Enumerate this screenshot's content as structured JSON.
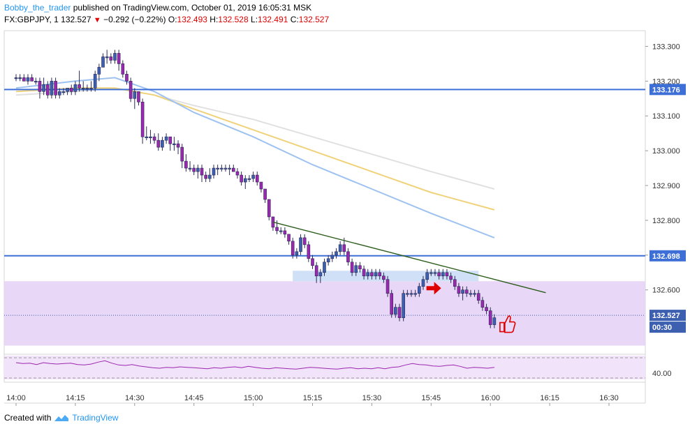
{
  "header": {
    "username": "Bobby_the_trader",
    "published_text": "published on TradingView.com, October 01, 2019 16:05:31 MSK",
    "symbol": "FX:GBPJPY, 1",
    "last": "132.527",
    "change": "−0.292 (−0.22%)",
    "o_label": "O:",
    "o_val": "132.493",
    "h_label": "H:",
    "h_val": "132.528",
    "l_label": "L:",
    "l_val": "132.491",
    "c_label": "C:",
    "c_val": "132.527"
  },
  "footer": {
    "created_with": "Created with",
    "brand": "TradingView"
  },
  "colors": {
    "candle_up": "#3d5fb0",
    "candle_down": "#9c27b0",
    "hline": "#3d6fd6",
    "zone": "#e5d3f5",
    "rsi": "#9c27b0"
  },
  "chart_data": {
    "type": "candlestick",
    "x_ticks": [
      "14:00",
      "14:15",
      "14:30",
      "14:45",
      "15:00",
      "15:15",
      "15:30",
      "15:45",
      "16:00",
      "16:15",
      "16:30"
    ],
    "y_ticks": [
      "133.300",
      "133.200",
      "133.100",
      "133.000",
      "132.900",
      "132.800",
      "132.700",
      "132.600"
    ],
    "ylim": [
      132.415,
      133.345
    ],
    "price_labels": [
      {
        "text": "133.176",
        "value": 133.176,
        "kind": "hline"
      },
      {
        "text": "132.698",
        "value": 132.698,
        "kind": "hline"
      },
      {
        "text": "132.527",
        "value": 132.527,
        "kind": "last"
      },
      {
        "text": "00:30",
        "value": 132.49,
        "kind": "timer"
      }
    ],
    "rsi_tick": "40.00",
    "horizontal_lines": [
      133.176,
      132.698
    ],
    "zone": {
      "from": 132.44,
      "to": 132.625
    },
    "trendline": {
      "from_time": "15:05",
      "from": 132.795,
      "to_time": "16:14",
      "to": 132.592
    },
    "annotations": [
      "arrow",
      "thumbs-up"
    ],
    "candles": [
      {
        "t": "14:00",
        "o": 133.21,
        "h": 133.22,
        "l": 133.2,
        "c": 133.21
      },
      {
        "t": "14:01",
        "o": 133.21,
        "h": 133.22,
        "l": 133.2,
        "c": 133.21
      },
      {
        "t": "14:02",
        "o": 133.21,
        "h": 133.22,
        "l": 133.2,
        "c": 133.2
      },
      {
        "t": "14:03",
        "o": 133.2,
        "h": 133.22,
        "l": 133.19,
        "c": 133.21
      },
      {
        "t": "14:04",
        "o": 133.21,
        "h": 133.22,
        "l": 133.2,
        "c": 133.2
      },
      {
        "t": "14:05",
        "o": 133.2,
        "h": 133.21,
        "l": 133.19,
        "c": 133.2
      },
      {
        "t": "14:06",
        "o": 133.2,
        "h": 133.21,
        "l": 133.15,
        "c": 133.17
      },
      {
        "t": "14:07",
        "o": 133.17,
        "h": 133.21,
        "l": 133.16,
        "c": 133.19
      },
      {
        "t": "14:08",
        "o": 133.19,
        "h": 133.2,
        "l": 133.15,
        "c": 133.16
      },
      {
        "t": "14:09",
        "o": 133.16,
        "h": 133.21,
        "l": 133.15,
        "c": 133.2
      },
      {
        "t": "14:10",
        "o": 133.2,
        "h": 133.21,
        "l": 133.15,
        "c": 133.16
      },
      {
        "t": "14:11",
        "o": 133.16,
        "h": 133.18,
        "l": 133.15,
        "c": 133.17
      },
      {
        "t": "14:12",
        "o": 133.17,
        "h": 133.18,
        "l": 133.16,
        "c": 133.17
      },
      {
        "t": "14:13",
        "o": 133.17,
        "h": 133.18,
        "l": 133.16,
        "c": 133.18
      },
      {
        "t": "14:14",
        "o": 133.18,
        "h": 133.19,
        "l": 133.16,
        "c": 133.17
      },
      {
        "t": "14:15",
        "o": 133.17,
        "h": 133.2,
        "l": 133.16,
        "c": 133.19
      },
      {
        "t": "14:16",
        "o": 133.19,
        "h": 133.23,
        "l": 133.17,
        "c": 133.18
      },
      {
        "t": "14:17",
        "o": 133.18,
        "h": 133.2,
        "l": 133.17,
        "c": 133.18
      },
      {
        "t": "14:18",
        "o": 133.18,
        "h": 133.19,
        "l": 133.17,
        "c": 133.18
      },
      {
        "t": "14:19",
        "o": 133.18,
        "h": 133.2,
        "l": 133.17,
        "c": 133.18
      },
      {
        "t": "14:20",
        "o": 133.18,
        "h": 133.23,
        "l": 133.17,
        "c": 133.22
      },
      {
        "t": "14:21",
        "o": 133.22,
        "h": 133.25,
        "l": 133.2,
        "c": 133.24
      },
      {
        "t": "14:22",
        "o": 133.24,
        "h": 133.28,
        "l": 133.24,
        "c": 133.27
      },
      {
        "t": "14:23",
        "o": 133.27,
        "h": 133.29,
        "l": 133.25,
        "c": 133.27
      },
      {
        "t": "14:24",
        "o": 133.27,
        "h": 133.28,
        "l": 133.25,
        "c": 133.26
      },
      {
        "t": "14:25",
        "o": 133.26,
        "h": 133.29,
        "l": 133.25,
        "c": 133.28
      },
      {
        "t": "14:26",
        "o": 133.28,
        "h": 133.29,
        "l": 133.23,
        "c": 133.25
      },
      {
        "t": "14:27",
        "o": 133.25,
        "h": 133.26,
        "l": 133.21,
        "c": 133.22
      },
      {
        "t": "14:28",
        "o": 133.22,
        "h": 133.23,
        "l": 133.19,
        "c": 133.2
      },
      {
        "t": "14:29",
        "o": 133.2,
        "h": 133.21,
        "l": 133.14,
        "c": 133.15
      },
      {
        "t": "14:30",
        "o": 133.15,
        "h": 133.18,
        "l": 133.12,
        "c": 133.17
      },
      {
        "t": "14:31",
        "o": 133.17,
        "h": 133.17,
        "l": 133.13,
        "c": 133.14
      },
      {
        "t": "14:32",
        "o": 133.14,
        "h": 133.15,
        "l": 133.02,
        "c": 133.04
      },
      {
        "t": "14:33",
        "o": 133.04,
        "h": 133.07,
        "l": 133.03,
        "c": 133.04
      },
      {
        "t": "14:34",
        "o": 133.04,
        "h": 133.06,
        "l": 133.02,
        "c": 133.04
      },
      {
        "t": "14:35",
        "o": 133.04,
        "h": 133.05,
        "l": 133.02,
        "c": 133.03
      },
      {
        "t": "14:36",
        "o": 133.03,
        "h": 133.05,
        "l": 133,
        "c": 133.01
      },
      {
        "t": "14:37",
        "o": 133.01,
        "h": 133.04,
        "l": 133,
        "c": 133.03
      },
      {
        "t": "14:38",
        "o": 133.03,
        "h": 133.05,
        "l": 133.02,
        "c": 133.04
      },
      {
        "t": "14:39",
        "o": 133.04,
        "h": 133.04,
        "l": 133,
        "c": 133.02
      },
      {
        "t": "14:40",
        "o": 133.02,
        "h": 133.04,
        "l": 133,
        "c": 133.02
      },
      {
        "t": "14:41",
        "o": 133.02,
        "h": 133.03,
        "l": 132.99,
        "c": 133.01
      },
      {
        "t": "14:42",
        "o": 133.01,
        "h": 133.02,
        "l": 132.95,
        "c": 132.97
      },
      {
        "t": "14:43",
        "o": 132.97,
        "h": 132.99,
        "l": 132.94,
        "c": 132.95
      },
      {
        "t": "14:44",
        "o": 132.95,
        "h": 132.97,
        "l": 132.94,
        "c": 132.95
      },
      {
        "t": "14:45",
        "o": 132.95,
        "h": 132.96,
        "l": 132.93,
        "c": 132.94
      },
      {
        "t": "14:46",
        "o": 132.94,
        "h": 132.96,
        "l": 132.92,
        "c": 132.95
      },
      {
        "t": "14:47",
        "o": 132.95,
        "h": 132.96,
        "l": 132.91,
        "c": 132.93
      },
      {
        "t": "14:48",
        "o": 132.93,
        "h": 132.94,
        "l": 132.91,
        "c": 132.92
      },
      {
        "t": "14:49",
        "o": 132.92,
        "h": 132.95,
        "l": 132.91,
        "c": 132.93
      },
      {
        "t": "14:50",
        "o": 132.93,
        "h": 132.96,
        "l": 132.92,
        "c": 132.95
      },
      {
        "t": "14:51",
        "o": 132.95,
        "h": 132.96,
        "l": 132.93,
        "c": 132.95
      },
      {
        "t": "14:52",
        "o": 132.95,
        "h": 132.96,
        "l": 132.94,
        "c": 132.95
      },
      {
        "t": "14:53",
        "o": 132.95,
        "h": 132.96,
        "l": 132.94,
        "c": 132.95
      },
      {
        "t": "14:54",
        "o": 132.95,
        "h": 132.96,
        "l": 132.93,
        "c": 132.95
      },
      {
        "t": "14:55",
        "o": 132.95,
        "h": 132.96,
        "l": 132.94,
        "c": 132.94
      },
      {
        "t": "14:56",
        "o": 132.94,
        "h": 132.95,
        "l": 132.92,
        "c": 132.93
      },
      {
        "t": "14:57",
        "o": 132.93,
        "h": 132.94,
        "l": 132.9,
        "c": 132.91
      },
      {
        "t": "14:58",
        "o": 132.91,
        "h": 132.93,
        "l": 132.89,
        "c": 132.92
      },
      {
        "t": "14:59",
        "o": 132.92,
        "h": 132.93,
        "l": 132.91,
        "c": 132.92
      },
      {
        "t": "15:00",
        "o": 132.92,
        "h": 132.94,
        "l": 132.91,
        "c": 132.93
      },
      {
        "t": "15:01",
        "o": 132.93,
        "h": 132.94,
        "l": 132.9,
        "c": 132.91
      },
      {
        "t": "15:02",
        "o": 132.91,
        "h": 132.91,
        "l": 132.88,
        "c": 132.89
      },
      {
        "t": "15:03",
        "o": 132.89,
        "h": 132.89,
        "l": 132.85,
        "c": 132.86
      },
      {
        "t": "15:04",
        "o": 132.86,
        "h": 132.86,
        "l": 132.8,
        "c": 132.81
      },
      {
        "t": "15:05",
        "o": 132.81,
        "h": 132.81,
        "l": 132.77,
        "c": 132.78
      },
      {
        "t": "15:06",
        "o": 132.78,
        "h": 132.8,
        "l": 132.76,
        "c": 132.77
      },
      {
        "t": "15:07",
        "o": 132.77,
        "h": 132.78,
        "l": 132.76,
        "c": 132.77
      },
      {
        "t": "15:08",
        "o": 132.77,
        "h": 132.78,
        "l": 132.75,
        "c": 132.76
      },
      {
        "t": "15:09",
        "o": 132.76,
        "h": 132.76,
        "l": 132.73,
        "c": 132.74
      },
      {
        "t": "15:10",
        "o": 132.74,
        "h": 132.75,
        "l": 132.69,
        "c": 132.7
      },
      {
        "t": "15:11",
        "o": 132.7,
        "h": 132.72,
        "l": 132.69,
        "c": 132.71
      },
      {
        "t": "15:12",
        "o": 132.71,
        "h": 132.76,
        "l": 132.7,
        "c": 132.75
      },
      {
        "t": "15:13",
        "o": 132.75,
        "h": 132.76,
        "l": 132.72,
        "c": 132.73
      },
      {
        "t": "15:14",
        "o": 132.73,
        "h": 132.74,
        "l": 132.68,
        "c": 132.69
      },
      {
        "t": "15:15",
        "o": 132.69,
        "h": 132.7,
        "l": 132.66,
        "c": 132.67
      },
      {
        "t": "15:16",
        "o": 132.67,
        "h": 132.68,
        "l": 132.62,
        "c": 132.64
      },
      {
        "t": "15:17",
        "o": 132.64,
        "h": 132.66,
        "l": 132.62,
        "c": 132.65
      },
      {
        "t": "15:18",
        "o": 132.65,
        "h": 132.69,
        "l": 132.64,
        "c": 132.68
      },
      {
        "t": "15:19",
        "o": 132.68,
        "h": 132.7,
        "l": 132.67,
        "c": 132.69
      },
      {
        "t": "15:20",
        "o": 132.69,
        "h": 132.71,
        "l": 132.68,
        "c": 132.7
      },
      {
        "t": "15:21",
        "o": 132.7,
        "h": 132.72,
        "l": 132.69,
        "c": 132.71
      },
      {
        "t": "15:22",
        "o": 132.71,
        "h": 132.74,
        "l": 132.7,
        "c": 132.73
      },
      {
        "t": "15:23",
        "o": 132.73,
        "h": 132.75,
        "l": 132.7,
        "c": 132.71
      },
      {
        "t": "15:24",
        "o": 132.71,
        "h": 132.72,
        "l": 132.67,
        "c": 132.68
      },
      {
        "t": "15:25",
        "o": 132.68,
        "h": 132.69,
        "l": 132.64,
        "c": 132.65
      },
      {
        "t": "15:26",
        "o": 132.65,
        "h": 132.68,
        "l": 132.64,
        "c": 132.67
      },
      {
        "t": "15:27",
        "o": 132.67,
        "h": 132.68,
        "l": 132.65,
        "c": 132.66
      },
      {
        "t": "15:28",
        "o": 132.66,
        "h": 132.67,
        "l": 132.63,
        "c": 132.64
      },
      {
        "t": "15:29",
        "o": 132.64,
        "h": 132.66,
        "l": 132.63,
        "c": 132.65
      },
      {
        "t": "15:30",
        "o": 132.65,
        "h": 132.66,
        "l": 132.63,
        "c": 132.64
      },
      {
        "t": "15:31",
        "o": 132.64,
        "h": 132.66,
        "l": 132.63,
        "c": 132.65
      },
      {
        "t": "15:32",
        "o": 132.65,
        "h": 132.66,
        "l": 132.63,
        "c": 132.64
      },
      {
        "t": "15:33",
        "o": 132.64,
        "h": 132.65,
        "l": 132.62,
        "c": 132.63
      },
      {
        "t": "15:34",
        "o": 132.63,
        "h": 132.64,
        "l": 132.58,
        "c": 132.59
      },
      {
        "t": "15:35",
        "o": 132.59,
        "h": 132.6,
        "l": 132.52,
        "c": 132.53
      },
      {
        "t": "15:36",
        "o": 132.53,
        "h": 132.56,
        "l": 132.52,
        "c": 132.55
      },
      {
        "t": "15:37",
        "o": 132.55,
        "h": 132.56,
        "l": 132.51,
        "c": 132.52
      },
      {
        "t": "15:38",
        "o": 132.52,
        "h": 132.6,
        "l": 132.51,
        "c": 132.59
      },
      {
        "t": "15:39",
        "o": 132.59,
        "h": 132.6,
        "l": 132.58,
        "c": 132.59
      },
      {
        "t": "15:40",
        "o": 132.59,
        "h": 132.6,
        "l": 132.58,
        "c": 132.59
      },
      {
        "t": "15:41",
        "o": 132.59,
        "h": 132.6,
        "l": 132.58,
        "c": 132.59
      },
      {
        "t": "15:42",
        "o": 132.59,
        "h": 132.62,
        "l": 132.58,
        "c": 132.61
      },
      {
        "t": "15:43",
        "o": 132.61,
        "h": 132.64,
        "l": 132.6,
        "c": 132.63
      },
      {
        "t": "15:44",
        "o": 132.63,
        "h": 132.66,
        "l": 132.62,
        "c": 132.65
      },
      {
        "t": "15:45",
        "o": 132.65,
        "h": 132.66,
        "l": 132.64,
        "c": 132.65
      },
      {
        "t": "15:46",
        "o": 132.65,
        "h": 132.66,
        "l": 132.64,
        "c": 132.65
      },
      {
        "t": "15:47",
        "o": 132.65,
        "h": 132.66,
        "l": 132.63,
        "c": 132.64
      },
      {
        "t": "15:48",
        "o": 132.64,
        "h": 132.66,
        "l": 132.63,
        "c": 132.65
      },
      {
        "t": "15:49",
        "o": 132.65,
        "h": 132.66,
        "l": 132.63,
        "c": 132.64
      },
      {
        "t": "15:50",
        "o": 132.64,
        "h": 132.65,
        "l": 132.62,
        "c": 132.63
      },
      {
        "t": "15:51",
        "o": 132.63,
        "h": 132.64,
        "l": 132.6,
        "c": 132.61
      },
      {
        "t": "15:52",
        "o": 132.61,
        "h": 132.62,
        "l": 132.58,
        "c": 132.59
      },
      {
        "t": "15:53",
        "o": 132.59,
        "h": 132.61,
        "l": 132.57,
        "c": 132.6
      },
      {
        "t": "15:54",
        "o": 132.6,
        "h": 132.61,
        "l": 132.58,
        "c": 132.59
      },
      {
        "t": "15:55",
        "o": 132.59,
        "h": 132.6,
        "l": 132.58,
        "c": 132.59
      },
      {
        "t": "15:56",
        "o": 132.59,
        "h": 132.6,
        "l": 132.58,
        "c": 132.59
      },
      {
        "t": "15:57",
        "o": 132.59,
        "h": 132.6,
        "l": 132.56,
        "c": 132.57
      },
      {
        "t": "15:58",
        "o": 132.57,
        "h": 132.58,
        "l": 132.54,
        "c": 132.55
      },
      {
        "t": "15:59",
        "o": 132.55,
        "h": 132.56,
        "l": 132.53,
        "c": 132.54
      },
      {
        "t": "16:00",
        "o": 132.54,
        "h": 132.55,
        "l": 132.49,
        "c": 132.5
      },
      {
        "t": "16:01",
        "o": 132.5,
        "h": 132.53,
        "l": 132.49,
        "c": 132.52
      }
    ],
    "moving_averages": [
      {
        "color": "#e0e0e0",
        "points": [
          [
            "14:00",
            133.16
          ],
          [
            "14:15",
            133.17
          ],
          [
            "14:25",
            133.18
          ],
          [
            "14:35",
            133.16
          ],
          [
            "14:45",
            133.13
          ],
          [
            "15:00",
            133.09
          ],
          [
            "15:15",
            133.04
          ],
          [
            "15:30",
            132.99
          ],
          [
            "15:45",
            132.94
          ],
          [
            "16:01",
            132.89
          ]
        ]
      },
      {
        "color": "#f0d27a",
        "points": [
          [
            "14:00",
            133.17
          ],
          [
            "14:15",
            133.18
          ],
          [
            "14:25",
            133.18
          ],
          [
            "14:35",
            133.16
          ],
          [
            "14:45",
            133.12
          ],
          [
            "15:00",
            133.06
          ],
          [
            "15:15",
            133.0
          ],
          [
            "15:30",
            132.94
          ],
          [
            "15:45",
            132.88
          ],
          [
            "16:01",
            132.83
          ]
        ]
      },
      {
        "color": "#9ec2f0",
        "points": [
          [
            "14:00",
            133.18
          ],
          [
            "14:15",
            133.2
          ],
          [
            "14:25",
            133.21
          ],
          [
            "14:35",
            133.17
          ],
          [
            "14:45",
            133.11
          ],
          [
            "15:00",
            133.04
          ],
          [
            "15:15",
            132.96
          ],
          [
            "15:30",
            132.89
          ],
          [
            "15:45",
            132.82
          ],
          [
            "16:01",
            132.75
          ]
        ]
      }
    ],
    "rsi": [
      62,
      60,
      61,
      58,
      62,
      60,
      59,
      60,
      61,
      58,
      57,
      59,
      63,
      66,
      61,
      57,
      56,
      58,
      55,
      53,
      51,
      50,
      52,
      51,
      53,
      52,
      51,
      50,
      49,
      51,
      50,
      52,
      53,
      51,
      54,
      52,
      50,
      49,
      51,
      50,
      49,
      48,
      50,
      52,
      51,
      50,
      49,
      48,
      50,
      51,
      49,
      50,
      49,
      51,
      49,
      52,
      53,
      57,
      60,
      58,
      57,
      55,
      54,
      56,
      57,
      54,
      50,
      52,
      51,
      50,
      52
    ]
  }
}
